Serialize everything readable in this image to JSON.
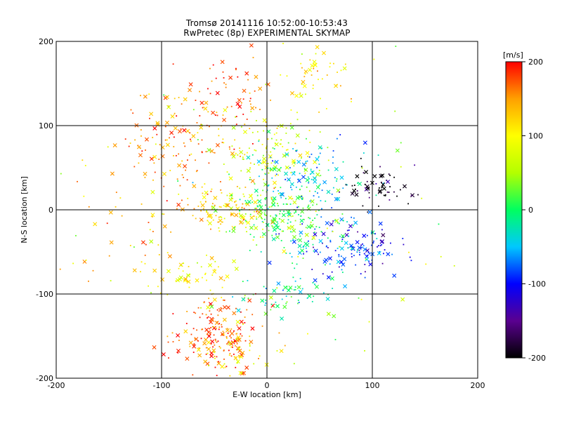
{
  "chart_data": {
    "type": "scatter",
    "title": "Tromsø 20141116 10:52:00-10:53:43",
    "subtitle": "RwPretec (8p) EXPERIMENTAL SKYMAP",
    "xlabel": "E-W location [km]",
    "ylabel": "N-S location [km]",
    "xlim": [
      -200,
      200
    ],
    "ylim": [
      -200,
      200
    ],
    "x_ticks": [
      "-200",
      "-100",
      "0",
      "100",
      "200"
    ],
    "y_ticks": [
      "-200",
      "-100",
      "0",
      "100",
      "200"
    ],
    "grid": true,
    "grid_lines": [
      -100,
      0,
      100
    ],
    "markers": [
      "x",
      "dot"
    ],
    "colorbar": {
      "label": "[m/s]",
      "range": [
        -200,
        200
      ],
      "ticks": [
        "200",
        "100",
        "0",
        "-100",
        "-200"
      ],
      "colors": [
        "#000000",
        "#5a0090",
        "#0000ff",
        "#00c8ff",
        "#00ff60",
        "#b4ff00",
        "#ffff00",
        "#ffa000",
        "#ff0000"
      ]
    },
    "clusters": [
      {
        "x": -50,
        "y": -150,
        "spread_x": 22,
        "spread_y": 22,
        "velocity": 175,
        "count": 180
      },
      {
        "x": -30,
        "y": -170,
        "spread_x": 15,
        "spread_y": 15,
        "velocity": 100,
        "count": 40
      },
      {
        "x": -70,
        "y": 90,
        "spread_x": 28,
        "spread_y": 32,
        "velocity": 160,
        "count": 130
      },
      {
        "x": -30,
        "y": 140,
        "spread_x": 18,
        "spread_y": 25,
        "velocity": 175,
        "count": 45
      },
      {
        "x": 45,
        "y": 160,
        "spread_x": 15,
        "spread_y": 22,
        "velocity": 110,
        "count": 50
      },
      {
        "x": 10,
        "y": 70,
        "spread_x": 25,
        "spread_y": 22,
        "velocity": 80,
        "count": 110
      },
      {
        "x": -40,
        "y": 0,
        "spread_x": 20,
        "spread_y": 14,
        "velocity": 120,
        "count": 110
      },
      {
        "x": 10,
        "y": 0,
        "spread_x": 25,
        "spread_y": 18,
        "velocity": 20,
        "count": 160
      },
      {
        "x": 40,
        "y": 40,
        "spread_x": 28,
        "spread_y": 22,
        "velocity": -40,
        "count": 130
      },
      {
        "x": 80,
        "y": -45,
        "spread_x": 25,
        "spread_y": 18,
        "velocity": -90,
        "count": 130
      },
      {
        "x": 40,
        "y": -35,
        "spread_x": 25,
        "spread_y": 18,
        "velocity": -15,
        "count": 60
      },
      {
        "x": 105,
        "y": 25,
        "spread_x": 14,
        "spread_y": 12,
        "velocity": -195,
        "count": 60
      },
      {
        "x": 20,
        "y": -100,
        "spread_x": 22,
        "spread_y": 12,
        "velocity": -10,
        "count": 60
      },
      {
        "x": -120,
        "y": 0,
        "spread_x": 35,
        "spread_y": 45,
        "velocity": 140,
        "count": 70
      },
      {
        "x": -60,
        "y": -80,
        "spread_x": 25,
        "spread_y": 15,
        "velocity": 100,
        "count": 50
      },
      {
        "x": 0,
        "y": 0,
        "spread_x": 110,
        "spread_y": 110,
        "velocity": 60,
        "count": 90
      }
    ]
  }
}
